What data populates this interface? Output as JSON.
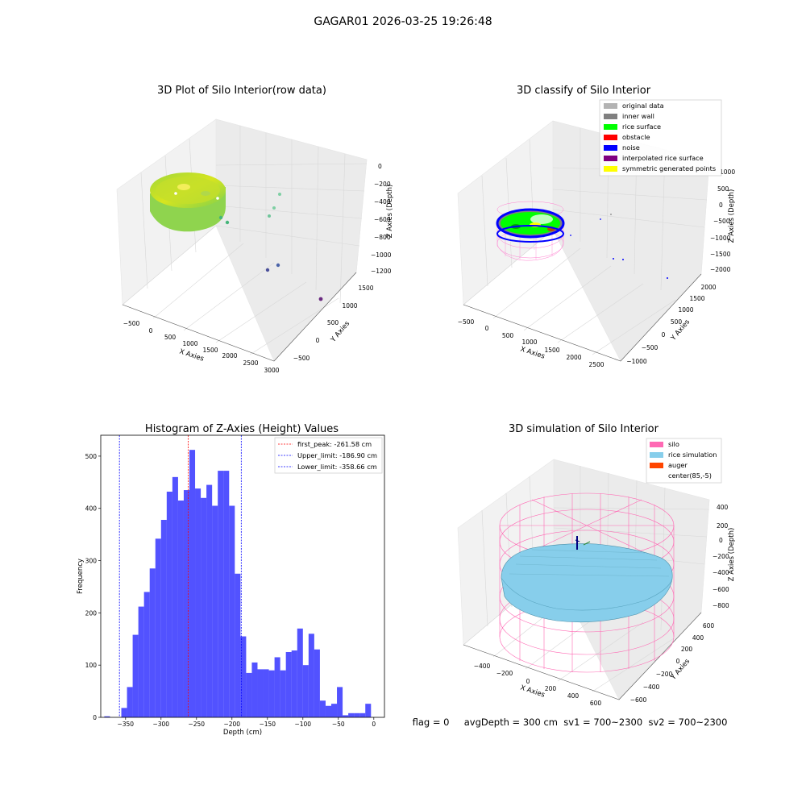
{
  "suptitle": "GAGAR01 2026-03-25 19:26:48",
  "panel_tl": {
    "title": "3D Plot of Silo Interior(row data)",
    "xlabel": "X Axies",
    "ylabel": "Y Axies",
    "zlabel": "Z Axies (Depth)",
    "xticks": [
      "−500",
      "0",
      "500",
      "1000",
      "1500",
      "2000",
      "2500",
      "3000"
    ],
    "yticks": [
      "−500",
      "0",
      "500",
      "1000",
      "1500"
    ],
    "zticks": [
      "0",
      "−200",
      "−400",
      "−600",
      "−800",
      "−1000",
      "−1200"
    ]
  },
  "panel_tr": {
    "title": "3D classify of Silo Interior",
    "xlabel": "X Axies",
    "ylabel": "Y Axies",
    "zlabel": "Z Axies (Depth)",
    "xticks": [
      "−500",
      "0",
      "500",
      "1000",
      "1500",
      "2000",
      "2500"
    ],
    "yticks": [
      "−1000",
      "−500",
      "0",
      "500",
      "1000",
      "1500",
      "2000"
    ],
    "zticks": [
      "1000",
      "500",
      "0",
      "−500",
      "−1000",
      "−1500",
      "−2000"
    ],
    "legend": [
      {
        "label": "original data",
        "color": "#b3b3b3"
      },
      {
        "label": "inner wall",
        "color": "#808080"
      },
      {
        "label": "rice surface",
        "color": "#00ff00"
      },
      {
        "label": "obstacle",
        "color": "#ff0000"
      },
      {
        "label": "noise",
        "color": "#0000ff"
      },
      {
        "label": "interpolated rice surface",
        "color": "#800080"
      },
      {
        "label": "symmetric generated points",
        "color": "#ffff00"
      }
    ]
  },
  "panel_br": {
    "title": "3D simulation of Silo Interior",
    "xlabel": "X Axies",
    "ylabel": "Y Axies",
    "zlabel": "Z Axies (Depth)",
    "xticks": [
      "−400",
      "−200",
      "0",
      "200",
      "400",
      "600"
    ],
    "yticks": [
      "−600",
      "−400",
      "−200",
      "0",
      "200",
      "400",
      "600"
    ],
    "zticks": [
      "400",
      "200",
      "0",
      "−200",
      "−400",
      "−600",
      "−800"
    ],
    "legend": [
      {
        "label": "silo",
        "color": "#ff69b4"
      },
      {
        "label": "rice simulation",
        "color": "#87ceeb"
      },
      {
        "label": "auger",
        "color": "#ff4500"
      },
      {
        "label": "center(85,-5)",
        "color": ""
      }
    ]
  },
  "status_line": "flag = 0     avgDepth = 300 cm  sv1 = 700~2300  sv2 = 700~2300",
  "chart_data": [
    {
      "type": "bar",
      "title": "Histogram of Z-Axies (Height) Values",
      "xlabel": "Depth (cm)",
      "ylabel": "Frequency",
      "xlim": [
        -385,
        15
      ],
      "ylim": [
        0,
        540
      ],
      "xticks": [
        -350,
        -300,
        -250,
        -200,
        -150,
        -100,
        -50,
        0
      ],
      "yticks": [
        0,
        100,
        200,
        300,
        400,
        500
      ],
      "bin_edges": [
        -380,
        -372,
        -364,
        -356,
        -348,
        -340,
        -332,
        -324,
        -316,
        -308,
        -300,
        -292,
        -284,
        -276,
        -268,
        -260,
        -252,
        -244,
        -236,
        -228,
        -220,
        -212,
        -204,
        -196,
        -188,
        -180,
        -172,
        -164,
        -156,
        -148,
        -140,
        -132,
        -124,
        -116,
        -108,
        -100,
        -92,
        -84,
        -76,
        -68,
        -60,
        -52,
        -44,
        -36,
        -28,
        -20,
        -12,
        -4,
        4
      ],
      "values": [
        2,
        0,
        0,
        18,
        58,
        158,
        212,
        240,
        285,
        342,
        378,
        432,
        460,
        415,
        435,
        512,
        438,
        420,
        445,
        405,
        472,
        472,
        405,
        275,
        155,
        85,
        105,
        92,
        92,
        90,
        115,
        90,
        125,
        128,
        170,
        100,
        160,
        130,
        32,
        22,
        26,
        58,
        4,
        8,
        8,
        8,
        26,
        0
      ],
      "series": [
        {
          "name": "",
          "color": "#0000ff"
        }
      ],
      "vlines": [
        {
          "label": "first_peak: -261.58 cm",
          "x": -261.58,
          "color": "#ff0000"
        },
        {
          "label": "Upper_limit: -186.90 cm",
          "x": -186.9,
          "color": "#0000ff"
        },
        {
          "label": "Lower_limit: -358.66 cm",
          "x": -358.66,
          "color": "#0000ff"
        }
      ],
      "legend_position": "top-right"
    }
  ]
}
